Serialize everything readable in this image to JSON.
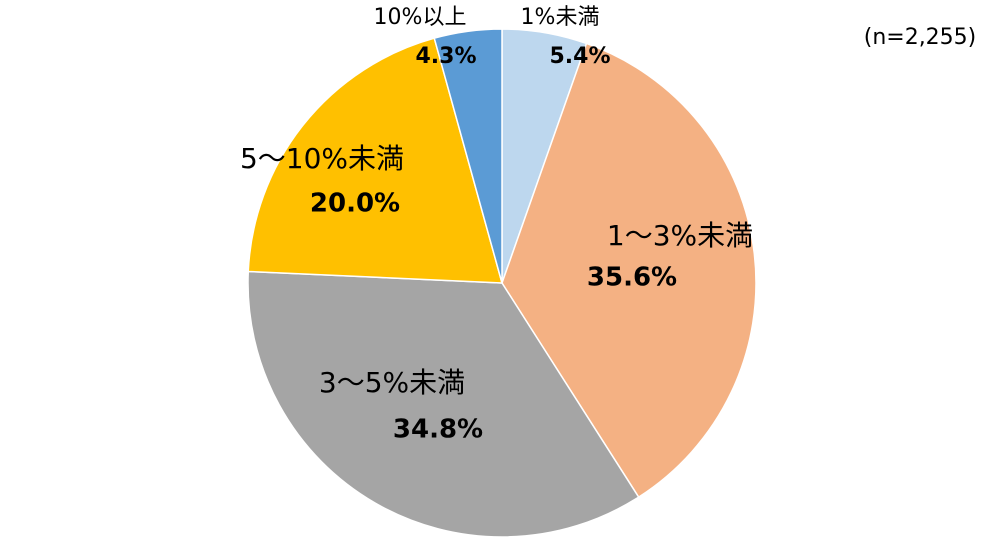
{
  "chart_data": {
    "type": "pie",
    "note": "(n=2,255)",
    "categories": [
      "1%未満",
      "1～3%未満",
      "3～5%未満",
      "5～10%未満",
      "10%以上"
    ],
    "values": [
      5.4,
      35.6,
      34.8,
      20.0,
      4.3
    ],
    "value_labels": [
      "5.4%",
      "35.6%",
      "34.8%",
      "20.0%",
      "4.3%"
    ],
    "colors": [
      "#bdd7ee",
      "#f4b183",
      "#a5a5a5",
      "#ffc000",
      "#5b9bd5"
    ]
  }
}
